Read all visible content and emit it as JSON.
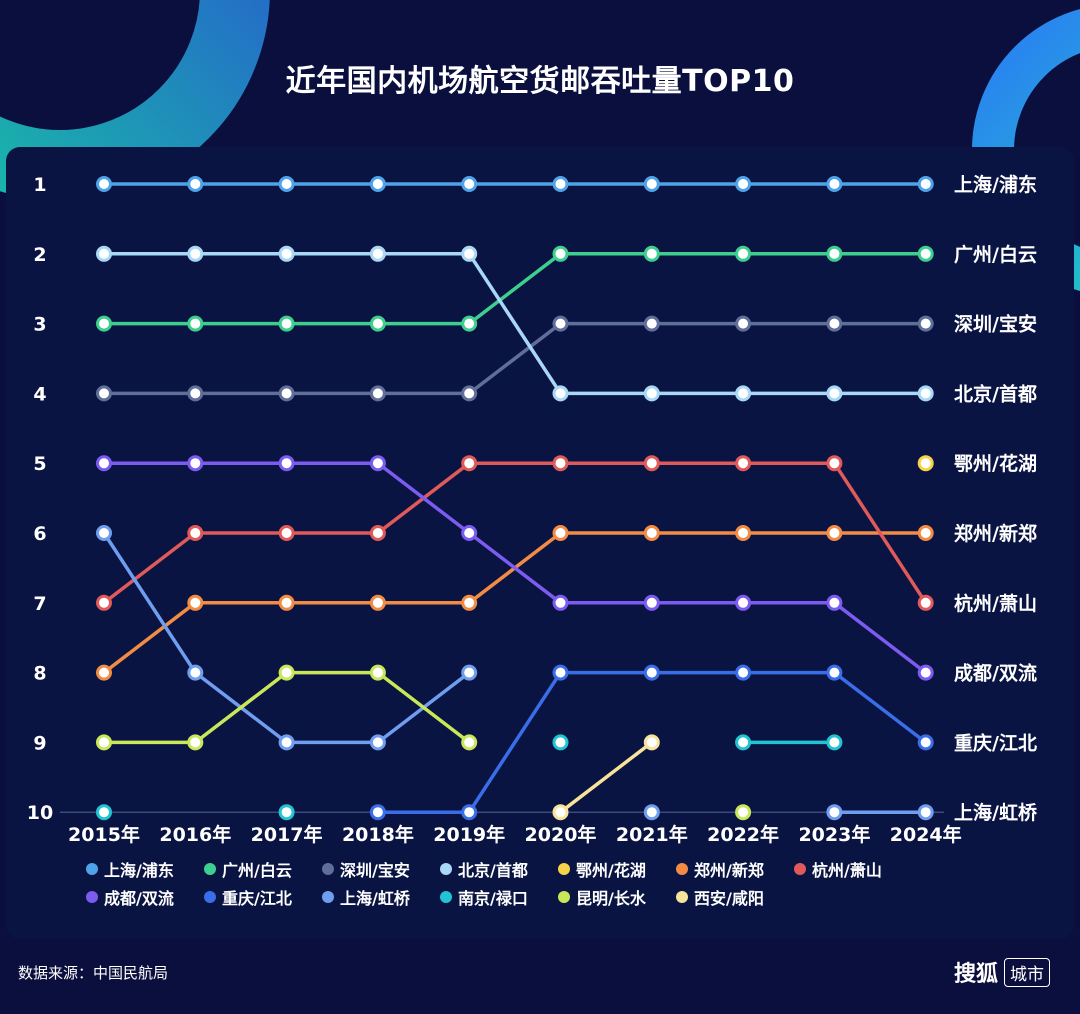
{
  "title": "近年国内机场航空货邮吞吐量TOP10",
  "source": "数据来源：中国民航局",
  "brand": {
    "name": "搜狐",
    "tag": "城市"
  },
  "chart_data": {
    "type": "line",
    "title": "近年国内机场航空货邮吞吐量TOP10",
    "xlabel": "",
    "ylabel": "",
    "x": [
      "2015年",
      "2016年",
      "2017年",
      "2018年",
      "2019年",
      "2020年",
      "2021年",
      "2022年",
      "2023年",
      "2024年"
    ],
    "y_ticks": [
      "1",
      "2",
      "3",
      "4",
      "5",
      "6",
      "7",
      "8",
      "9",
      "10"
    ],
    "ylim": [
      1,
      10
    ],
    "y_inverted": true,
    "legend_position": "bottom",
    "series": [
      {
        "name": "上海/浦东",
        "color": "#4fa3e8",
        "values": [
          1,
          1,
          1,
          1,
          1,
          1,
          1,
          1,
          1,
          1
        ]
      },
      {
        "name": "广州/白云",
        "color": "#3ecf8e",
        "values": [
          3,
          3,
          3,
          3,
          3,
          2,
          2,
          2,
          2,
          2
        ]
      },
      {
        "name": "深圳/宝安",
        "color": "#5f6f99",
        "values": [
          4,
          4,
          4,
          4,
          4,
          3,
          3,
          3,
          3,
          3
        ]
      },
      {
        "name": "北京/首都",
        "color": "#a9d8f7",
        "values": [
          2,
          2,
          2,
          2,
          2,
          4,
          4,
          4,
          4,
          4
        ]
      },
      {
        "name": "鄂州/花湖",
        "color": "#f7d34a",
        "values": [
          null,
          null,
          null,
          null,
          null,
          null,
          null,
          null,
          null,
          5
        ]
      },
      {
        "name": "郑州/新郑",
        "color": "#f28c45",
        "values": [
          8,
          7,
          7,
          7,
          7,
          6,
          6,
          6,
          6,
          6
        ]
      },
      {
        "name": "杭州/萧山",
        "color": "#e15a5a",
        "values": [
          7,
          6,
          6,
          6,
          5,
          5,
          5,
          5,
          5,
          7
        ]
      },
      {
        "name": "成都/双流",
        "color": "#7c5cf0",
        "values": [
          5,
          5,
          5,
          5,
          6,
          7,
          7,
          7,
          7,
          8
        ]
      },
      {
        "name": "重庆/江北",
        "color": "#3a6ee8",
        "values": [
          null,
          null,
          null,
          10,
          10,
          8,
          8,
          8,
          8,
          9
        ]
      },
      {
        "name": "上海/虹桥",
        "color": "#6f9ef0",
        "values": [
          6,
          8,
          9,
          9,
          8,
          null,
          10,
          null,
          10,
          10
        ]
      },
      {
        "name": "南京/禄口",
        "color": "#22c4d4",
        "values": [
          10,
          null,
          10,
          null,
          null,
          9,
          null,
          9,
          9,
          null
        ]
      },
      {
        "name": "昆明/长水",
        "color": "#c8e85a",
        "values": [
          9,
          9,
          8,
          8,
          9,
          null,
          null,
          10,
          null,
          null
        ]
      },
      {
        "name": "西安/咸阳",
        "color": "#f7e39a",
        "values": [
          null,
          null,
          null,
          null,
          null,
          10,
          9,
          null,
          null,
          null
        ]
      }
    ],
    "end_labels": [
      "上海/浦东",
      "广州/白云",
      "深圳/宝安",
      "北京/首都",
      "鄂州/花湖",
      "郑州/新郑",
      "杭州/萧山",
      "成都/双流",
      "重庆/江北",
      "上海/虹桥"
    ]
  }
}
